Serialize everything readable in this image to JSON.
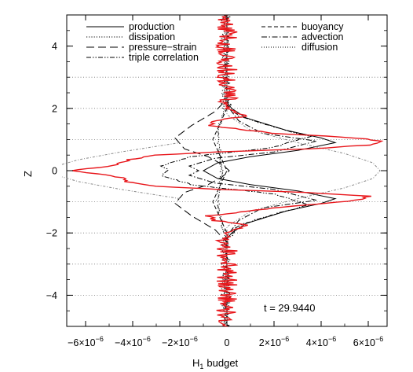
{
  "chart_data": {
    "type": "line",
    "xlabel": "H",
    "xlabel_subscript": "1",
    "xlabel_suffix": "budget",
    "ylabel": "Z",
    "xlim": [
      -6.8e-06,
      6.8e-06
    ],
    "ylim": [
      -5,
      5
    ],
    "x_ticks": [
      {
        "value": -6e-06,
        "base": "−6×10",
        "exp": "−6"
      },
      {
        "value": -4e-06,
        "base": "−4×10",
        "exp": "−6"
      },
      {
        "value": -2e-06,
        "base": "−2×10",
        "exp": "−6"
      },
      {
        "value": 0,
        "base": "0",
        "exp": ""
      },
      {
        "value": 2e-06,
        "base": "2×10",
        "exp": "−6"
      },
      {
        "value": 4e-06,
        "base": "4×10",
        "exp": "−6"
      },
      {
        "value": 6e-06,
        "base": "6×10",
        "exp": "−6"
      }
    ],
    "y_ticks": [
      {
        "value": -4,
        "label": "−4"
      },
      {
        "value": -2,
        "label": "−2"
      },
      {
        "value": 0,
        "label": "0"
      },
      {
        "value": 2,
        "label": "2"
      },
      {
        "value": 4,
        "label": "4"
      }
    ],
    "horizontal_reference_lines": [
      -4,
      -3,
      -2,
      -1,
      1,
      2,
      3
    ],
    "legend": {
      "placement": "top",
      "entries": [
        {
          "name": "production",
          "dash": "solid",
          "column": 0,
          "row": 0
        },
        {
          "name": "dissipation",
          "dash": "dotted",
          "column": 0,
          "row": 1
        },
        {
          "name": "pressure−strain",
          "dash": "long-dash",
          "column": 0,
          "row": 2
        },
        {
          "name": "triple correlation",
          "dash": "dash-dot-dot",
          "column": 0,
          "row": 3
        },
        {
          "name": "buoyancy",
          "dash": "dashed",
          "column": 1,
          "row": 0
        },
        {
          "name": "advection",
          "dash": "dash-dot",
          "column": 1,
          "row": 1
        },
        {
          "name": "diffusion",
          "dash": "fine-dotted",
          "column": 1,
          "row": 2
        }
      ]
    },
    "annotation": "t = 29.9440",
    "colors": {
      "total": "#e8161b",
      "series": "#000000",
      "diffusion": "#888888"
    },
    "series": [
      {
        "name": "production",
        "points": [
          [
            0,
            -5
          ],
          [
            0,
            -2.2
          ],
          [
            2e-07,
            -2.0
          ],
          [
            8e-07,
            -1.7
          ],
          [
            2.5e-06,
            -1.3
          ],
          [
            4e-06,
            -1.05
          ],
          [
            4.6e-06,
            -0.9
          ],
          [
            3e-06,
            -0.65
          ],
          [
            1e-06,
            -0.45
          ],
          [
            -4e-07,
            -0.25
          ],
          [
            -1e-06,
            0
          ],
          [
            -4e-07,
            0.25
          ],
          [
            1e-06,
            0.45
          ],
          [
            3e-06,
            0.65
          ],
          [
            4.6e-06,
            0.9
          ],
          [
            4e-06,
            1.05
          ],
          [
            2.5e-06,
            1.3
          ],
          [
            8e-07,
            1.7
          ],
          [
            2e-07,
            2.0
          ],
          [
            0,
            2.2
          ],
          [
            0,
            5
          ]
        ]
      },
      {
        "name": "dissipation",
        "points": [
          [
            -1e-07,
            -5
          ],
          [
            -1e-07,
            -2.0
          ],
          [
            -3e-07,
            -1.5
          ],
          [
            -4e-07,
            -1.0
          ],
          [
            -3e-07,
            -0.5
          ],
          [
            -2e-07,
            0
          ],
          [
            -3e-07,
            0.5
          ],
          [
            -4e-07,
            1.0
          ],
          [
            -3e-07,
            1.5
          ],
          [
            -1e-07,
            2.0
          ],
          [
            -1e-07,
            5
          ]
        ]
      },
      {
        "name": "pressure−strain",
        "points": [
          [
            0,
            -5
          ],
          [
            0,
            -2.3
          ],
          [
            -5e-07,
            -1.9
          ],
          [
            -1.5e-06,
            -1.45
          ],
          [
            -2.2e-06,
            -1.05
          ],
          [
            -1.8e-06,
            -0.7
          ],
          [
            -8e-07,
            -0.45
          ],
          [
            -2e-07,
            -0.2
          ],
          [
            1e-07,
            0
          ],
          [
            -2e-07,
            0.2
          ],
          [
            -8e-07,
            0.45
          ],
          [
            -1.8e-06,
            0.7
          ],
          [
            -2.2e-06,
            1.05
          ],
          [
            -1.5e-06,
            1.45
          ],
          [
            -5e-07,
            1.9
          ],
          [
            0,
            2.3
          ],
          [
            0,
            5
          ]
        ]
      },
      {
        "name": "triple correlation",
        "points": [
          [
            0,
            -5
          ],
          [
            0,
            -2.2
          ],
          [
            5e-07,
            -1.75
          ],
          [
            2e-06,
            -1.4
          ],
          [
            3.5e-06,
            -1.1
          ],
          [
            2e-06,
            -0.75
          ],
          [
            -1.5e-06,
            -0.45
          ],
          [
            -2.8e-06,
            -0.15
          ],
          [
            -2.5e-06,
            0.05
          ],
          [
            -2.8e-06,
            0.15
          ],
          [
            -1.5e-06,
            0.45
          ],
          [
            2e-06,
            0.75
          ],
          [
            3.5e-06,
            1.1
          ],
          [
            2e-06,
            1.4
          ],
          [
            5e-07,
            1.75
          ],
          [
            0,
            2.2
          ],
          [
            0,
            5
          ]
        ]
      },
      {
        "name": "buoyancy",
        "points": [
          [
            0,
            -5
          ],
          [
            0,
            -2.0
          ],
          [
            -3e-07,
            -1.5
          ],
          [
            -6e-07,
            -1.0
          ],
          [
            -3e-07,
            -0.5
          ],
          [
            0,
            0
          ],
          [
            -3e-07,
            0.5
          ],
          [
            -6e-07,
            1.0
          ],
          [
            -3e-07,
            1.5
          ],
          [
            0,
            2.0
          ],
          [
            0,
            5
          ]
        ]
      },
      {
        "name": "advection",
        "points": [
          [
            0,
            -5
          ],
          [
            0,
            -2.1
          ],
          [
            5e-07,
            -1.6
          ],
          [
            1.5e-06,
            -1.2
          ],
          [
            3.8e-06,
            -0.95
          ],
          [
            2e-06,
            -0.6
          ],
          [
            -5e-07,
            -0.4
          ],
          [
            -1.6e-06,
            -0.15
          ],
          [
            -1.2e-06,
            0
          ],
          [
            -1.6e-06,
            0.15
          ],
          [
            -5e-07,
            0.4
          ],
          [
            2e-06,
            0.6
          ],
          [
            3.8e-06,
            0.95
          ],
          [
            1.5e-06,
            1.2
          ],
          [
            5e-07,
            1.6
          ],
          [
            0,
            2.1
          ],
          [
            0,
            5
          ]
        ]
      },
      {
        "name": "diffusion",
        "points": [
          [
            0,
            -5
          ],
          [
            0,
            -1.8
          ],
          [
            1e-06,
            -1.3
          ],
          [
            3e-06,
            -0.9
          ],
          [
            5e-06,
            -0.55
          ],
          [
            6.2e-06,
            -0.25
          ],
          [
            6.5e-06,
            0
          ],
          [
            6.2e-06,
            0.25
          ],
          [
            5e-06,
            0.55
          ],
          [
            3e-06,
            0.9
          ],
          [
            1e-06,
            1.3
          ],
          [
            0,
            1.8
          ],
          [
            0,
            5
          ]
        ]
      },
      {
        "name": "diffusion-neg",
        "points": [
          [
            -2e-06,
            -0.9
          ],
          [
            -4.5e-06,
            -0.6
          ],
          [
            -6.3e-06,
            -0.35
          ],
          [
            -7e-06,
            -0.2
          ]
        ]
      },
      {
        "name": "diffusion-neg-top",
        "points": [
          [
            -7e-06,
            0.2
          ],
          [
            -6.3e-06,
            0.35
          ],
          [
            -4.5e-06,
            0.6
          ],
          [
            -2e-06,
            0.9
          ]
        ]
      },
      {
        "name": "total",
        "points": [
          [
            0,
            -5
          ],
          [
            0,
            -2.0
          ],
          [
            8e-07,
            -1.75
          ],
          [
            -5e-07,
            -1.6
          ],
          [
            -8e-07,
            -1.45
          ],
          [
            2e-06,
            -1.2
          ],
          [
            5.5e-06,
            -0.95
          ],
          [
            6e-06,
            -0.82
          ],
          [
            3.5e-06,
            -0.7
          ],
          [
            -5e-07,
            -0.6
          ],
          [
            -3e-06,
            -0.5
          ],
          [
            -4.2e-06,
            -0.35
          ],
          [
            -4.6e-06,
            -0.2
          ],
          [
            -5.5e-06,
            -0.1
          ],
          [
            -6.5e-06,
            0
          ],
          [
            -5.5e-06,
            0.1
          ],
          [
            -4.6e-06,
            0.2
          ],
          [
            -4.2e-06,
            0.35
          ],
          [
            -3e-06,
            0.5
          ],
          [
            -5e-07,
            0.6
          ],
          [
            3.5e-06,
            0.7
          ],
          [
            6e-06,
            0.82
          ],
          [
            6.6e-06,
            0.95
          ],
          [
            5.5e-06,
            1.05
          ],
          [
            2e-06,
            1.2
          ],
          [
            -8e-07,
            1.45
          ],
          [
            -5e-07,
            1.6
          ],
          [
            8e-07,
            1.75
          ],
          [
            0,
            2.0
          ],
          [
            0,
            5
          ]
        ]
      }
    ]
  }
}
